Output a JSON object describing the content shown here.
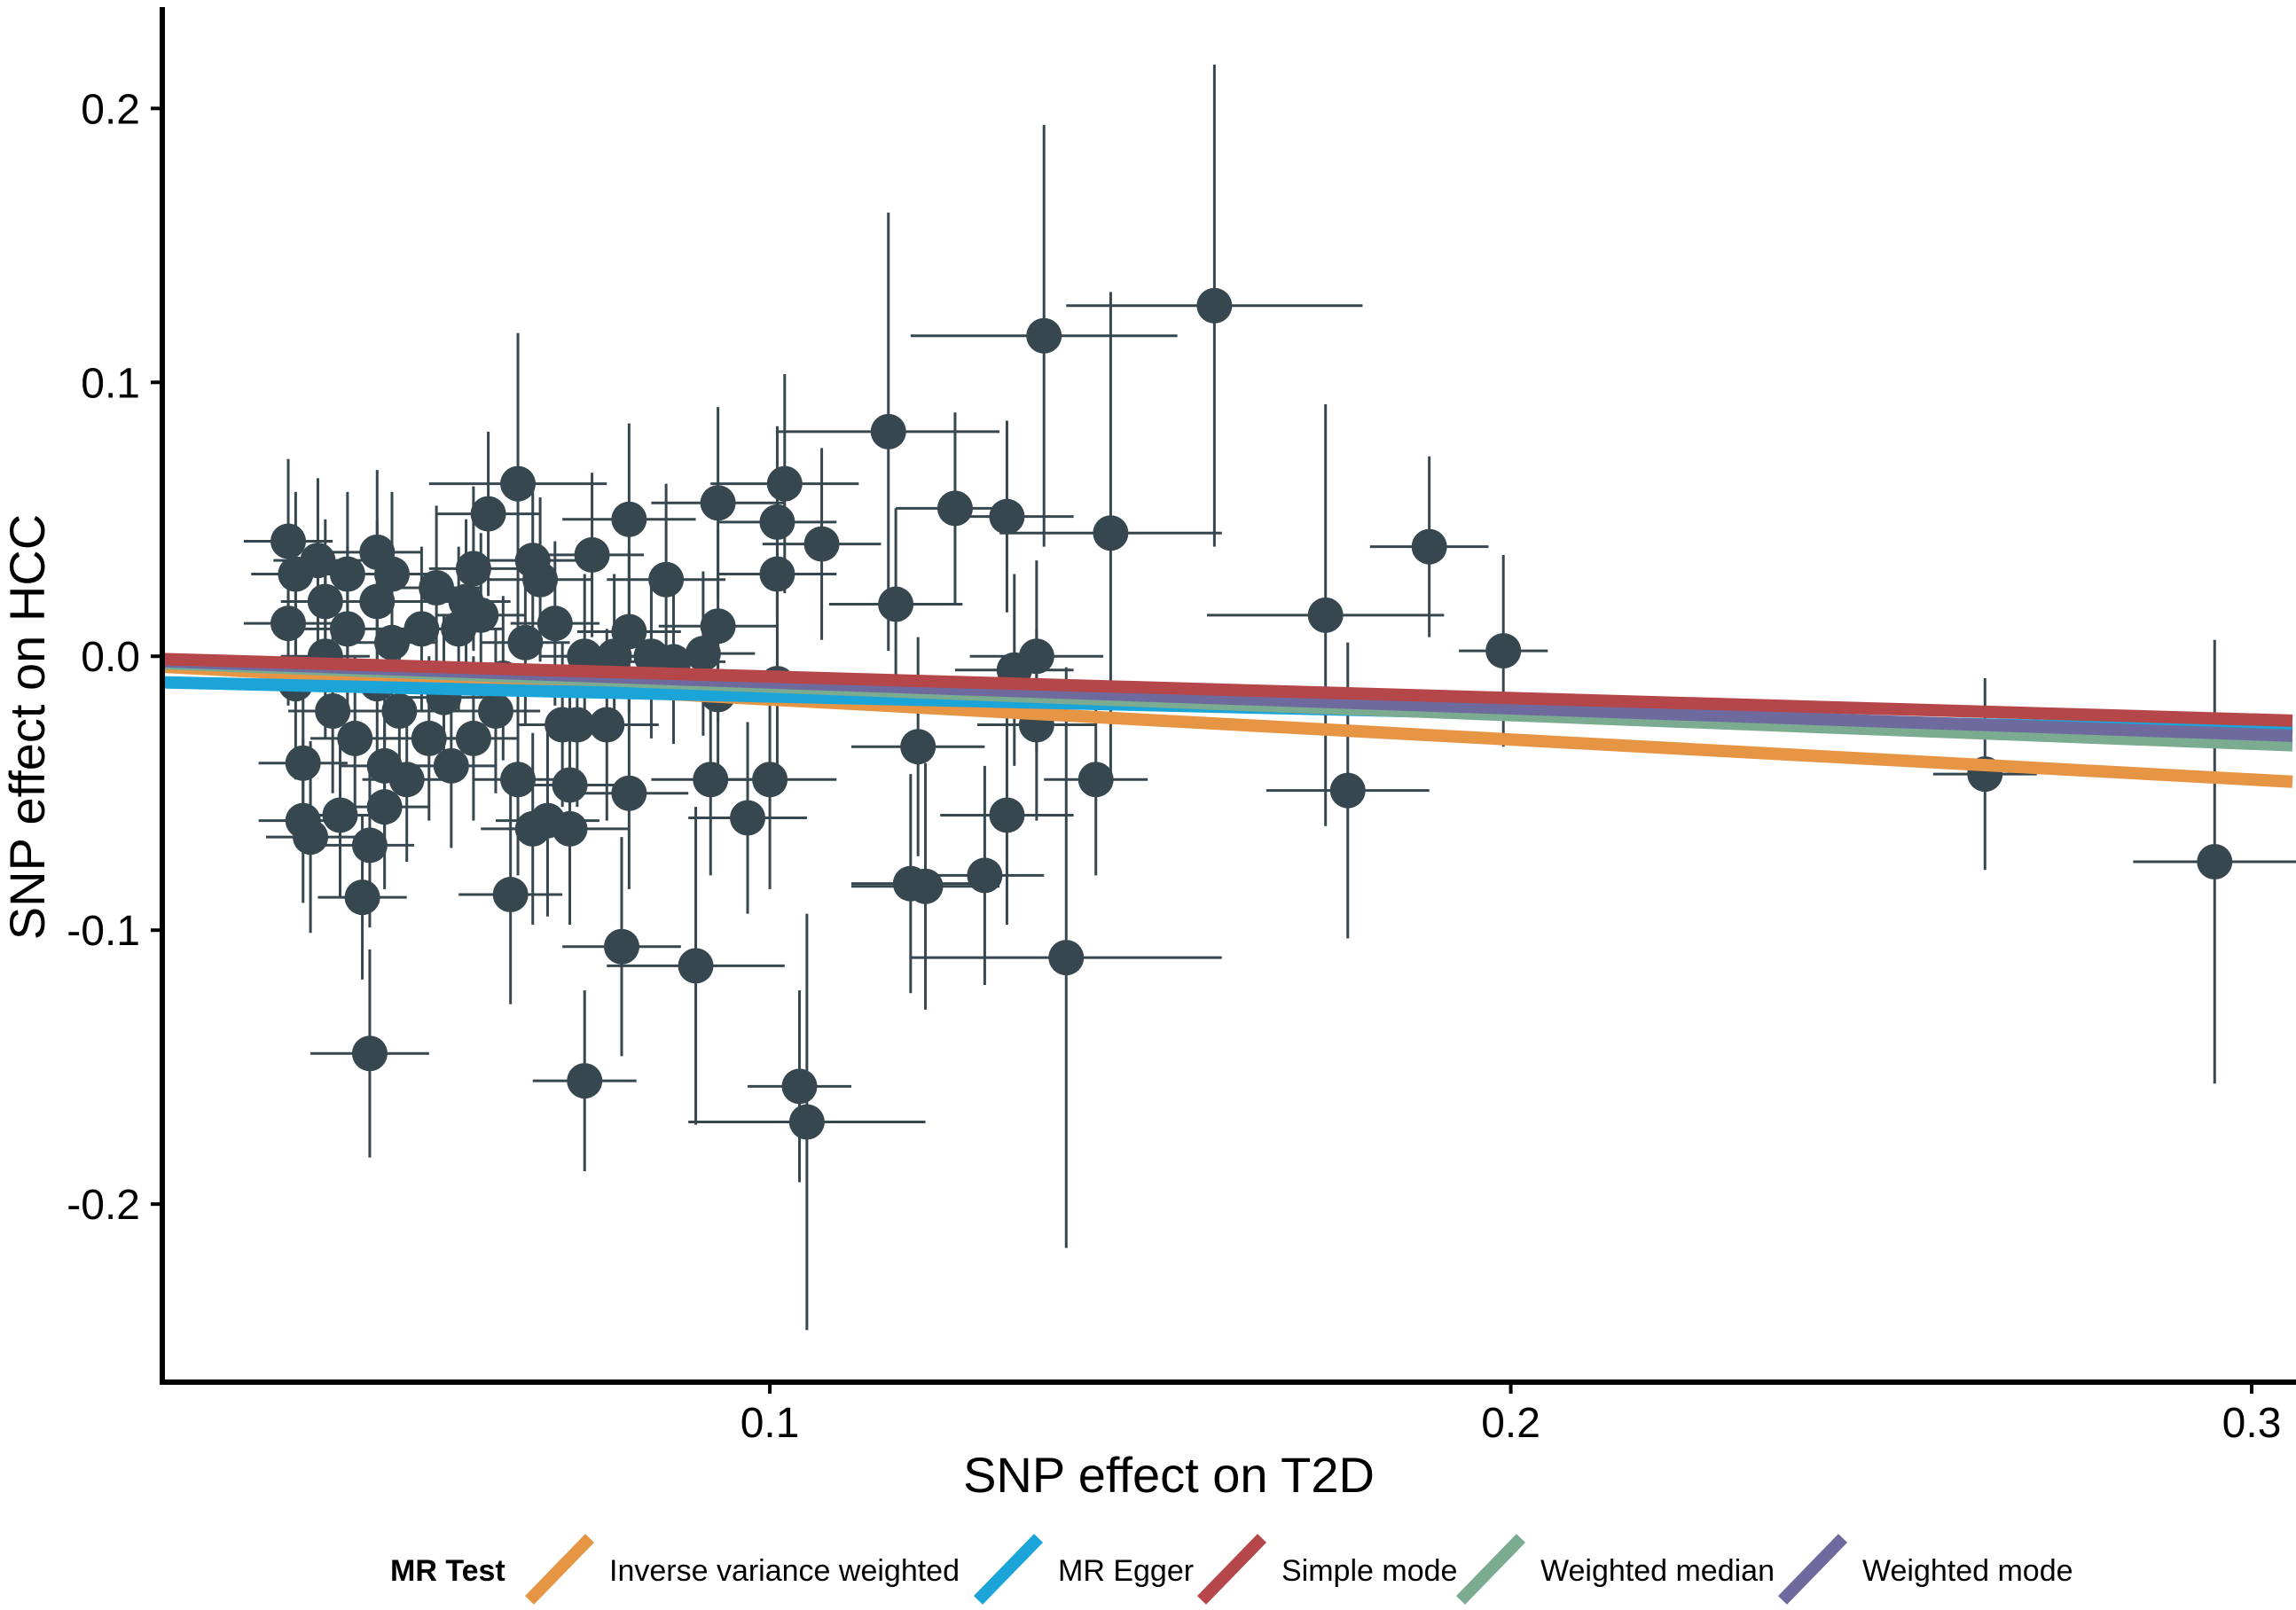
{
  "chart_data": {
    "type": "scatter",
    "title": "",
    "xlabel": "SNP effect on T2D",
    "ylabel": "SNP effect on HCC",
    "xlim": [
      0.018,
      0.3055
    ],
    "ylim": [
      -0.265,
      0.237
    ],
    "x_ticks": [
      0.1,
      0.2,
      0.3
    ],
    "x_tick_labels": [
      "0.1",
      "0.2",
      "0.3"
    ],
    "y_ticks": [
      0.2,
      0.1,
      0.0,
      -0.1,
      -0.2
    ],
    "y_tick_labels": [
      "0.2",
      "0.1",
      "0.0",
      "-0.1",
      "-0.2"
    ],
    "grid": false,
    "point_color": "#37474f",
    "legend": {
      "title": "MR Test",
      "position": "bottom",
      "entries": [
        {
          "label": "Inverse variance weighted",
          "color": "#e69545"
        },
        {
          "label": "MR Egger",
          "color": "#1aa4d8"
        },
        {
          "label": "Simple mode",
          "color": "#b5464a"
        },
        {
          "label": "Weighted median",
          "color": "#7bab91"
        },
        {
          "label": "Weighted mode",
          "color": "#6f6a9e"
        }
      ]
    },
    "lines": [
      {
        "name": "Inverse variance weighted",
        "color": "#e69545",
        "x": [
          0.018,
          0.3055
        ],
        "y": [
          -0.0038,
          -0.0458
        ]
      },
      {
        "name": "MR Egger",
        "color": "#1aa4d8",
        "x": [
          0.018,
          0.3055
        ],
        "y": [
          -0.0095,
          -0.0275
        ]
      },
      {
        "name": "Weighted median",
        "color": "#7bab91",
        "x": [
          0.018,
          0.3055
        ],
        "y": [
          -0.0025,
          -0.0325
        ]
      },
      {
        "name": "Weighted mode",
        "color": "#6f6a9e",
        "x": [
          0.018,
          0.3055
        ],
        "y": [
          -0.0018,
          -0.029
        ]
      },
      {
        "name": "Simple mode",
        "color": "#b5464a",
        "x": [
          0.018,
          0.3055
        ],
        "y": [
          -0.001,
          -0.0235
        ]
      }
    ],
    "points": [
      {
        "x": 0.035,
        "y": 0.042,
        "xerr": 0.006,
        "yerr": 0.03
      },
      {
        "x": 0.036,
        "y": 0.03,
        "xerr": 0.006,
        "yerr": 0.03
      },
      {
        "x": 0.035,
        "y": 0.012,
        "xerr": 0.006,
        "yerr": 0.03
      },
      {
        "x": 0.036,
        "y": -0.01,
        "xerr": 0.006,
        "yerr": 0.035
      },
      {
        "x": 0.037,
        "y": -0.039,
        "xerr": 0.006,
        "yerr": 0.03
      },
      {
        "x": 0.037,
        "y": -0.06,
        "xerr": 0.006,
        "yerr": 0.03
      },
      {
        "x": 0.038,
        "y": -0.066,
        "xerr": 0.006,
        "yerr": 0.035
      },
      {
        "x": 0.039,
        "y": 0.035,
        "xerr": 0.006,
        "yerr": 0.03
      },
      {
        "x": 0.04,
        "y": 0.02,
        "xerr": 0.006,
        "yerr": 0.03
      },
      {
        "x": 0.04,
        "y": 0.0,
        "xerr": 0.006,
        "yerr": 0.03
      },
      {
        "x": 0.041,
        "y": -0.02,
        "xerr": 0.006,
        "yerr": 0.03
      },
      {
        "x": 0.042,
        "y": -0.058,
        "xerr": 0.006,
        "yerr": 0.03
      },
      {
        "x": 0.043,
        "y": 0.03,
        "xerr": 0.006,
        "yerr": 0.03
      },
      {
        "x": 0.043,
        "y": 0.01,
        "xerr": 0.006,
        "yerr": 0.03
      },
      {
        "x": 0.044,
        "y": -0.03,
        "xerr": 0.006,
        "yerr": 0.03
      },
      {
        "x": 0.045,
        "y": -0.088,
        "xerr": 0.006,
        "yerr": 0.03
      },
      {
        "x": 0.046,
        "y": -0.069,
        "xerr": 0.006,
        "yerr": 0.03
      },
      {
        "x": 0.046,
        "y": -0.145,
        "xerr": 0.008,
        "yerr": 0.038
      },
      {
        "x": 0.047,
        "y": 0.038,
        "xerr": 0.006,
        "yerr": 0.03
      },
      {
        "x": 0.047,
        "y": 0.02,
        "xerr": 0.006,
        "yerr": 0.03
      },
      {
        "x": 0.047,
        "y": -0.01,
        "xerr": 0.006,
        "yerr": 0.03
      },
      {
        "x": 0.048,
        "y": -0.04,
        "xerr": 0.006,
        "yerr": 0.03
      },
      {
        "x": 0.048,
        "y": -0.055,
        "xerr": 0.006,
        "yerr": 0.03
      },
      {
        "x": 0.049,
        "y": 0.03,
        "xerr": 0.006,
        "yerr": 0.03
      },
      {
        "x": 0.049,
        "y": 0.005,
        "xerr": 0.006,
        "yerr": 0.03
      },
      {
        "x": 0.05,
        "y": -0.02,
        "xerr": 0.006,
        "yerr": 0.03
      },
      {
        "x": 0.051,
        "y": -0.045,
        "xerr": 0.006,
        "yerr": 0.03
      },
      {
        "x": 0.053,
        "y": 0.01,
        "xerr": 0.006,
        "yerr": 0.03
      },
      {
        "x": 0.054,
        "y": -0.03,
        "xerr": 0.006,
        "yerr": 0.03
      },
      {
        "x": 0.055,
        "y": 0.025,
        "xerr": 0.006,
        "yerr": 0.03
      },
      {
        "x": 0.056,
        "y": -0.015,
        "xerr": 0.006,
        "yerr": 0.03
      },
      {
        "x": 0.057,
        "y": -0.04,
        "xerr": 0.006,
        "yerr": 0.03
      },
      {
        "x": 0.058,
        "y": 0.01,
        "xerr": 0.006,
        "yerr": 0.03
      },
      {
        "x": 0.059,
        "y": 0.02,
        "xerr": 0.006,
        "yerr": 0.03
      },
      {
        "x": 0.06,
        "y": -0.03,
        "xerr": 0.006,
        "yerr": 0.03
      },
      {
        "x": 0.06,
        "y": 0.032,
        "xerr": 0.006,
        "yerr": 0.03
      },
      {
        "x": 0.061,
        "y": 0.015,
        "xerr": 0.006,
        "yerr": 0.03
      },
      {
        "x": 0.062,
        "y": 0.052,
        "xerr": 0.007,
        "yerr": 0.03
      },
      {
        "x": 0.063,
        "y": -0.02,
        "xerr": 0.006,
        "yerr": 0.03
      },
      {
        "x": 0.064,
        "y": -0.008,
        "xerr": 0.006,
        "yerr": 0.03
      },
      {
        "x": 0.065,
        "y": -0.087,
        "xerr": 0.007,
        "yerr": 0.04
      },
      {
        "x": 0.066,
        "y": -0.045,
        "xerr": 0.006,
        "yerr": 0.035
      },
      {
        "x": 0.066,
        "y": 0.063,
        "xerr": 0.012,
        "yerr": 0.055
      },
      {
        "x": 0.067,
        "y": 0.005,
        "xerr": 0.006,
        "yerr": 0.03
      },
      {
        "x": 0.068,
        "y": 0.035,
        "xerr": 0.007,
        "yerr": 0.03
      },
      {
        "x": 0.068,
        "y": -0.063,
        "xerr": 0.007,
        "yerr": 0.035
      },
      {
        "x": 0.069,
        "y": 0.028,
        "xerr": 0.007,
        "yerr": 0.03
      },
      {
        "x": 0.07,
        "y": -0.06,
        "xerr": 0.007,
        "yerr": 0.035
      },
      {
        "x": 0.071,
        "y": 0.012,
        "xerr": 0.006,
        "yerr": 0.03
      },
      {
        "x": 0.072,
        "y": -0.025,
        "xerr": 0.006,
        "yerr": 0.03
      },
      {
        "x": 0.073,
        "y": -0.063,
        "xerr": 0.008,
        "yerr": 0.035
      },
      {
        "x": 0.073,
        "y": -0.047,
        "xerr": 0.007,
        "yerr": 0.035
      },
      {
        "x": 0.074,
        "y": -0.025,
        "xerr": 0.006,
        "yerr": 0.03
      },
      {
        "x": 0.075,
        "y": 0.0,
        "xerr": 0.006,
        "yerr": 0.03
      },
      {
        "x": 0.075,
        "y": -0.155,
        "xerr": 0.007,
        "yerr": 0.033
      },
      {
        "x": 0.076,
        "y": 0.037,
        "xerr": 0.007,
        "yerr": 0.03
      },
      {
        "x": 0.078,
        "y": -0.025,
        "xerr": 0.007,
        "yerr": 0.035
      },
      {
        "x": 0.079,
        "y": 0.0,
        "xerr": 0.007,
        "yerr": 0.03
      },
      {
        "x": 0.08,
        "y": -0.106,
        "xerr": 0.008,
        "yerr": 0.04
      },
      {
        "x": 0.081,
        "y": 0.05,
        "xerr": 0.009,
        "yerr": 0.035
      },
      {
        "x": 0.081,
        "y": -0.05,
        "xerr": 0.008,
        "yerr": 0.035
      },
      {
        "x": 0.081,
        "y": 0.009,
        "xerr": 0.007,
        "yerr": 0.03
      },
      {
        "x": 0.084,
        "y": 0.0,
        "xerr": 0.007,
        "yerr": 0.03
      },
      {
        "x": 0.086,
        "y": 0.028,
        "xerr": 0.008,
        "yerr": 0.035
      },
      {
        "x": 0.087,
        "y": -0.002,
        "xerr": 0.007,
        "yerr": 0.03
      },
      {
        "x": 0.09,
        "y": -0.113,
        "xerr": 0.012,
        "yerr": 0.058
      },
      {
        "x": 0.091,
        "y": 0.001,
        "xerr": 0.007,
        "yerr": 0.03
      },
      {
        "x": 0.092,
        "y": -0.045,
        "xerr": 0.008,
        "yerr": 0.035
      },
      {
        "x": 0.093,
        "y": 0.011,
        "xerr": 0.008,
        "yerr": 0.035
      },
      {
        "x": 0.093,
        "y": 0.056,
        "xerr": 0.009,
        "yerr": 0.035
      },
      {
        "x": 0.093,
        "y": -0.014,
        "xerr": 0.007,
        "yerr": 0.03
      },
      {
        "x": 0.097,
        "y": -0.059,
        "xerr": 0.008,
        "yerr": 0.035
      },
      {
        "x": 0.1,
        "y": -0.045,
        "xerr": 0.009,
        "yerr": 0.04
      },
      {
        "x": 0.101,
        "y": 0.049,
        "xerr": 0.008,
        "yerr": 0.035
      },
      {
        "x": 0.101,
        "y": 0.03,
        "xerr": 0.008,
        "yerr": 0.035
      },
      {
        "x": 0.101,
        "y": -0.01,
        "xerr": 0.008,
        "yerr": 0.035
      },
      {
        "x": 0.102,
        "y": 0.063,
        "xerr": 0.01,
        "yerr": 0.04
      },
      {
        "x": 0.104,
        "y": -0.157,
        "xerr": 0.007,
        "yerr": 0.035
      },
      {
        "x": 0.105,
        "y": -0.17,
        "xerr": 0.016,
        "yerr": 0.076
      },
      {
        "x": 0.107,
        "y": 0.041,
        "xerr": 0.008,
        "yerr": 0.035
      },
      {
        "x": 0.116,
        "y": 0.082,
        "xerr": 0.015,
        "yerr": 0.08
      },
      {
        "x": 0.117,
        "y": 0.019,
        "xerr": 0.009,
        "yerr": 0.035
      },
      {
        "x": 0.119,
        "y": -0.083,
        "xerr": 0.008,
        "yerr": 0.04
      },
      {
        "x": 0.12,
        "y": -0.033,
        "xerr": 0.009,
        "yerr": 0.04
      },
      {
        "x": 0.121,
        "y": -0.084,
        "xerr": 0.01,
        "yerr": 0.045
      },
      {
        "x": 0.125,
        "y": 0.054,
        "xerr": 0.008,
        "yerr": 0.035
      },
      {
        "x": 0.129,
        "y": -0.08,
        "xerr": 0.008,
        "yerr": 0.04
      },
      {
        "x": 0.132,
        "y": -0.058,
        "xerr": 0.009,
        "yerr": 0.04
      },
      {
        "x": 0.132,
        "y": 0.051,
        "xerr": 0.009,
        "yerr": 0.035
      },
      {
        "x": 0.133,
        "y": -0.005,
        "xerr": 0.008,
        "yerr": 0.035
      },
      {
        "x": 0.136,
        "y": -0.025,
        "xerr": 0.008,
        "yerr": 0.035
      },
      {
        "x": 0.136,
        "y": 0.0,
        "xerr": 0.009,
        "yerr": 0.035
      },
      {
        "x": 0.137,
        "y": 0.117,
        "xerr": 0.018,
        "yerr": 0.077
      },
      {
        "x": 0.14,
        "y": -0.11,
        "xerr": 0.021,
        "yerr": 0.106
      },
      {
        "x": 0.144,
        "y": -0.045,
        "xerr": 0.007,
        "yerr": 0.035
      },
      {
        "x": 0.146,
        "y": 0.045,
        "xerr": 0.015,
        "yerr": 0.088
      },
      {
        "x": 0.16,
        "y": 0.128,
        "xerr": 0.02,
        "yerr": 0.088
      },
      {
        "x": 0.175,
        "y": 0.015,
        "xerr": 0.016,
        "yerr": 0.077
      },
      {
        "x": 0.178,
        "y": -0.049,
        "xerr": 0.011,
        "yerr": 0.054
      },
      {
        "x": 0.189,
        "y": 0.04,
        "xerr": 0.008,
        "yerr": 0.033
      },
      {
        "x": 0.199,
        "y": 0.002,
        "xerr": 0.006,
        "yerr": 0.035
      },
      {
        "x": 0.264,
        "y": -0.043,
        "xerr": 0.007,
        "yerr": 0.035
      },
      {
        "x": 0.295,
        "y": -0.075,
        "xerr": 0.011,
        "yerr": 0.081
      }
    ]
  }
}
